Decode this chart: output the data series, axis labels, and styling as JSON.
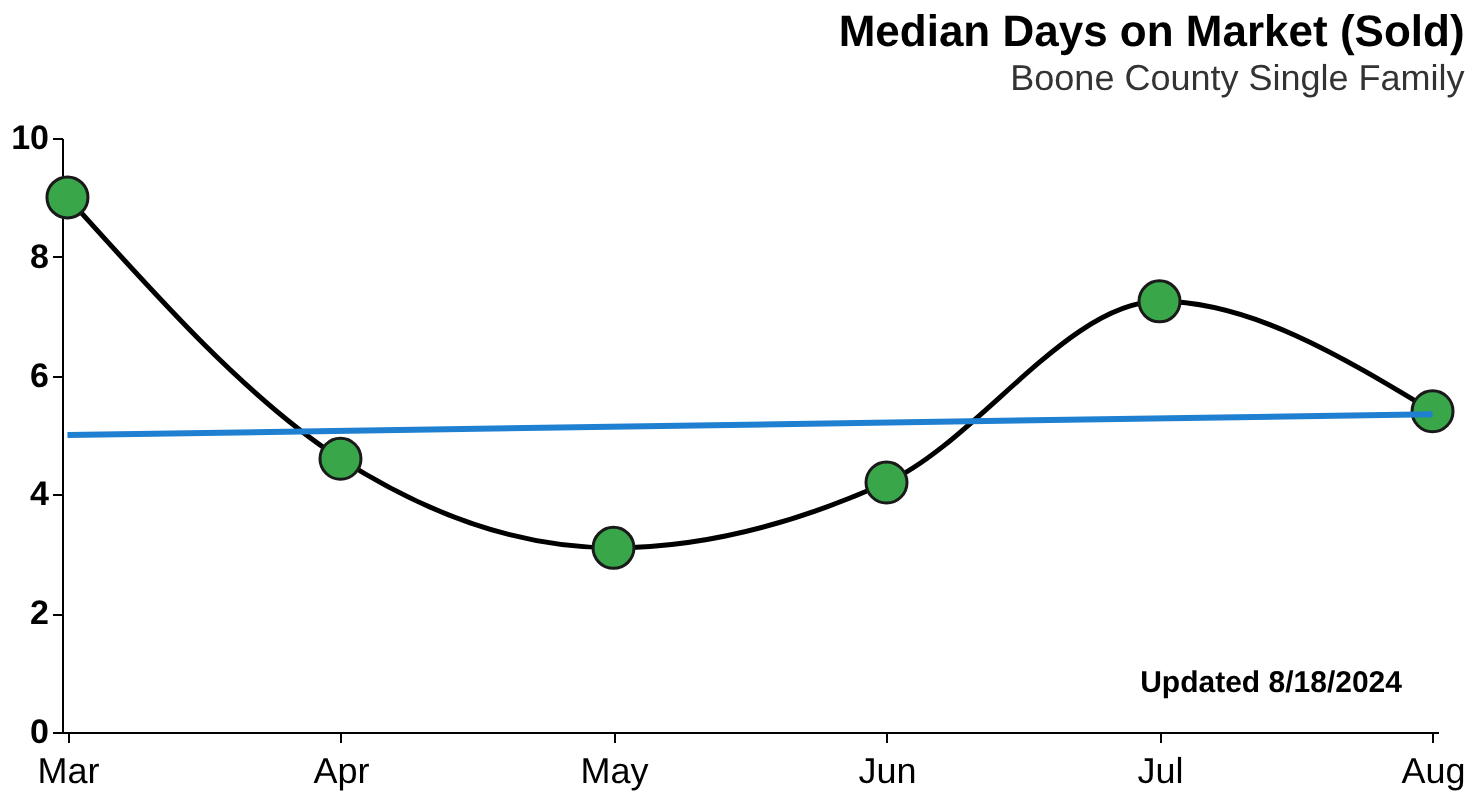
{
  "chart_data": {
    "type": "line",
    "title": "Median Days on Market (Sold)",
    "subtitle": "Boone County Single Family",
    "categories": [
      "Mar",
      "Apr",
      "May",
      "Jun",
      "Jul",
      "Aug"
    ],
    "series": [
      {
        "color": "#3aa64a",
        "values": [
          9.0,
          4.6,
          3.1,
          4.2,
          7.25,
          5.4
        ]
      },
      {
        "type": "line",
        "color": "#1f7fd0",
        "x": [
          "Mar",
          "Aug"
        ],
        "values": [
          5.0,
          5.35
        ],
        "marker": "none"
      }
    ],
    "ylim": [
      0,
      10
    ],
    "yticks": [
      0,
      2,
      4,
      6,
      8,
      10
    ],
    "grid": false,
    "marker": "circle",
    "annotations": [
      "Updated 8/18/2024"
    ]
  }
}
